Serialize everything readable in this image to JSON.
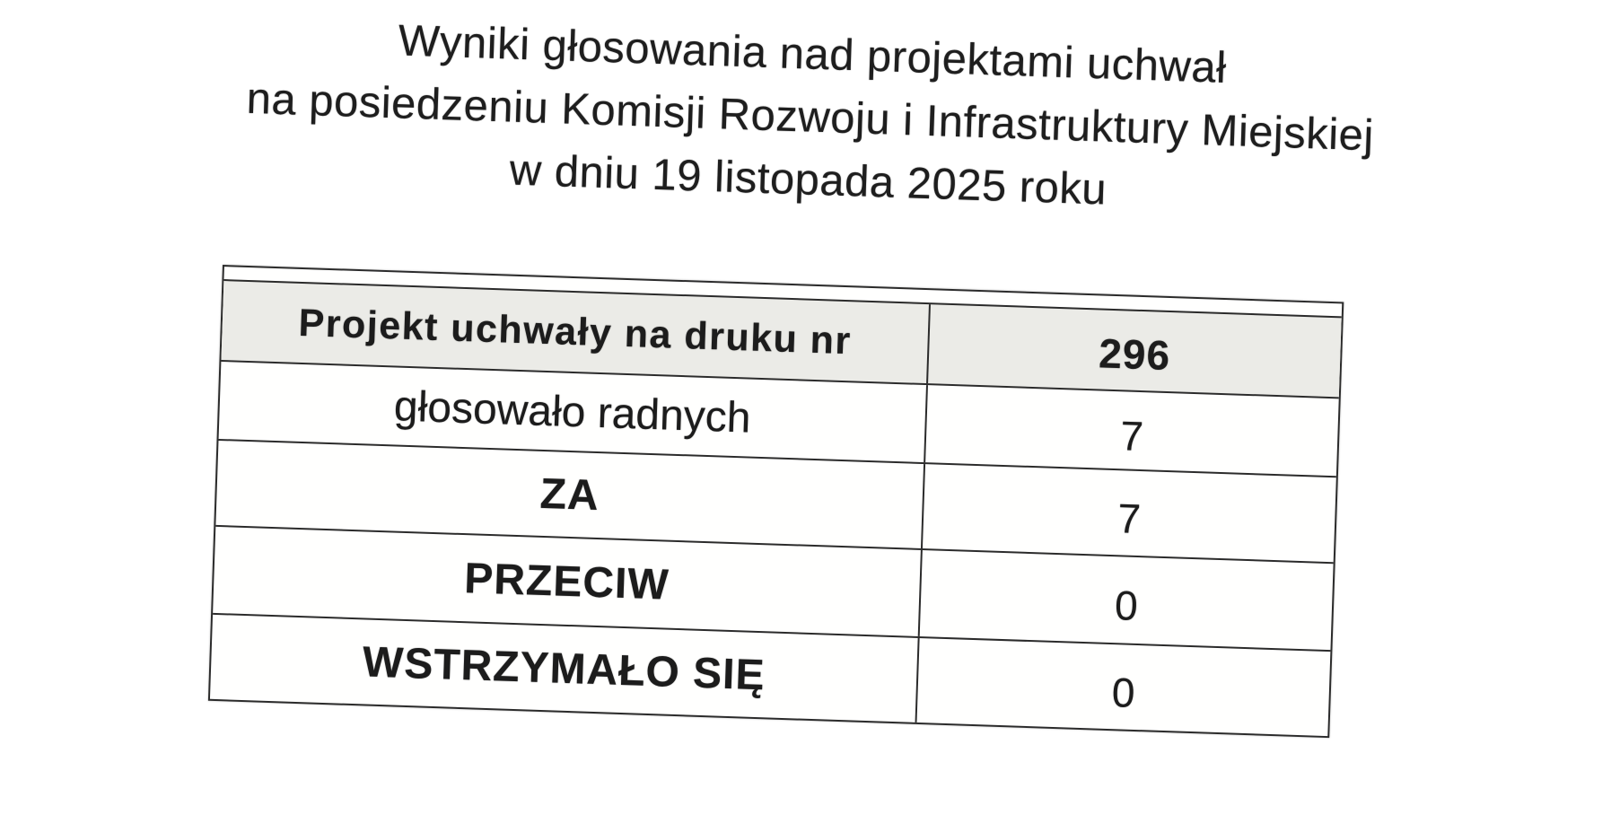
{
  "title": {
    "line1": "Wyniki głosowania nad projektami uchwał",
    "line2": "na posiedzeniu Komisji Rozwoju i Infrastruktury Miejskiej",
    "line3": "w dniu 19 listopada 2025 roku"
  },
  "table": {
    "header": {
      "label": "Projekt uchwały na druku nr",
      "value": "296"
    },
    "rows": [
      {
        "label": "głosowało radnych",
        "value": "7"
      },
      {
        "label": "ZA",
        "value": "7"
      },
      {
        "label": "PRZECIW",
        "value": "0"
      },
      {
        "label": "WSTRZYMAŁO SIĘ",
        "value": "0"
      }
    ]
  },
  "colors": {
    "header_row_bg": "#ebebe7",
    "border": "#2b2b2b",
    "text": "#1c1c1c",
    "page_bg": "#ffffff"
  }
}
